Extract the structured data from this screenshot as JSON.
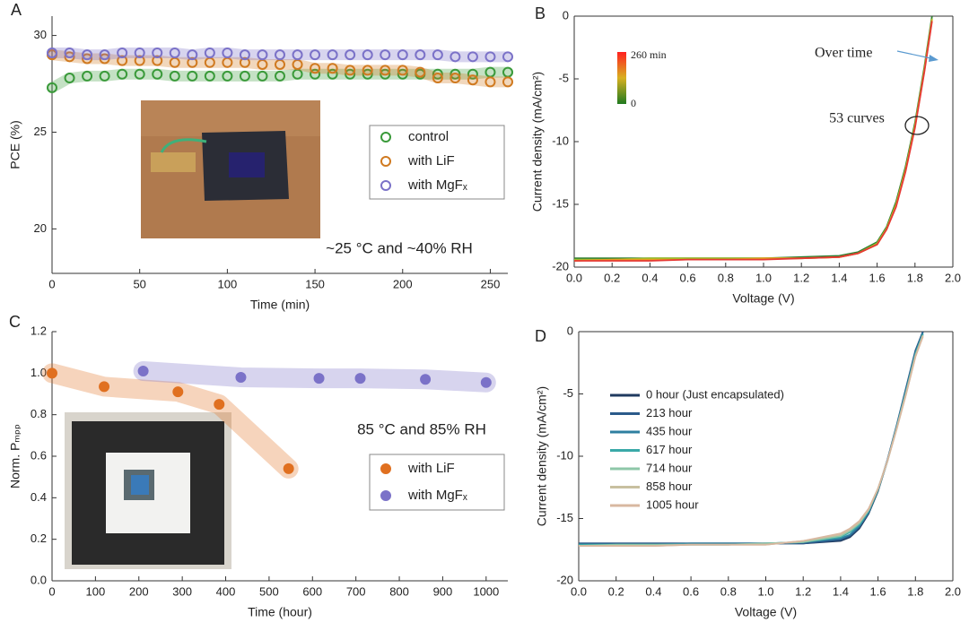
{
  "chart_data": [
    {
      "label": "A",
      "type": "scatter",
      "markers": "open",
      "xlabel": "Time (min)",
      "ylabel": "PCE (%)",
      "x": [
        0,
        10,
        20,
        30,
        40,
        50,
        60,
        70,
        80,
        90,
        100,
        110,
        120,
        130,
        140,
        150,
        160,
        170,
        180,
        190,
        200,
        210,
        220,
        230,
        240,
        250,
        260
      ],
      "xlim": [
        0,
        260
      ],
      "xticks": [
        0,
        50,
        100,
        150,
        200,
        250
      ],
      "ylim": [
        17.7,
        31
      ],
      "yticks": [
        20,
        25,
        30
      ],
      "series": [
        {
          "name": "control",
          "color": "#3a9a3a",
          "values": [
            27.3,
            27.8,
            27.9,
            27.9,
            28.0,
            28.0,
            28.0,
            27.9,
            27.9,
            27.9,
            27.9,
            27.9,
            27.9,
            27.9,
            28.0,
            28.0,
            28.0,
            28.0,
            28.0,
            28.0,
            28.0,
            28.0,
            28.0,
            28.0,
            28.0,
            28.1,
            28.1
          ]
        },
        {
          "name": "with LiF",
          "color": "#d07a20",
          "values": [
            29.0,
            28.9,
            28.8,
            28.8,
            28.7,
            28.7,
            28.7,
            28.6,
            28.6,
            28.6,
            28.6,
            28.6,
            28.5,
            28.5,
            28.5,
            28.3,
            28.3,
            28.2,
            28.2,
            28.2,
            28.2,
            28.1,
            27.8,
            27.8,
            27.7,
            27.6,
            27.6
          ]
        },
        {
          "name": "with MgFₓ",
          "color": "#7b72c8",
          "values": [
            29.1,
            29.1,
            29.0,
            29.0,
            29.1,
            29.1,
            29.1,
            29.1,
            29.0,
            29.1,
            29.1,
            29.0,
            29.0,
            29.0,
            29.0,
            29.0,
            29.0,
            29.0,
            29.0,
            29.0,
            29.0,
            29.0,
            29.0,
            28.9,
            28.9,
            28.9,
            28.9
          ]
        }
      ],
      "annotations": [
        "~25 °C and ~40% RH"
      ]
    },
    {
      "label": "B",
      "type": "line",
      "xlabel": "Voltage (V)",
      "ylabel": "Current density (mA/cm²)",
      "x": [
        0,
        0.2,
        0.4,
        0.6,
        0.8,
        1.0,
        1.2,
        1.4,
        1.5,
        1.6,
        1.65,
        1.7,
        1.75,
        1.8,
        1.85,
        1.89
      ],
      "xlim": [
        0,
        2
      ],
      "xticks": [
        {
          "value": 0,
          "label": "0.0"
        },
        0.2,
        0.4,
        0.6,
        0.8,
        {
          "value": 1,
          "label": "1.0"
        },
        1.2,
        1.4,
        1.6,
        1.8,
        {
          "value": 2,
          "label": "2.0"
        }
      ],
      "ylim": [
        -20,
        0
      ],
      "yticks": [
        0,
        -5,
        -10,
        -15,
        -20
      ],
      "series": [
        {
          "color": "#2e7d32",
          "values": [
            -19.3,
            -19.3,
            -19.3,
            -19.3,
            -19.3,
            -19.3,
            -19.2,
            -19.1,
            -18.8,
            -18.0,
            -16.8,
            -14.8,
            -12.0,
            -8.5,
            -4.0,
            0
          ]
        },
        {
          "color": "#9bbf2a",
          "values": [
            -19.4,
            -19.4,
            -19.3,
            -19.3,
            -19.3,
            -19.3,
            -19.3,
            -19.2,
            -18.9,
            -18.1,
            -16.9,
            -15.0,
            -12.2,
            -8.7,
            -4.2,
            -0.2
          ]
        },
        {
          "color": "#e6a020",
          "values": [
            -19.5,
            -19.4,
            -19.4,
            -19.4,
            -19.4,
            -19.3,
            -19.3,
            -19.2,
            -18.9,
            -18.2,
            -17.0,
            -15.1,
            -12.3,
            -8.8,
            -4.3,
            -0.3
          ]
        },
        {
          "color": "#e53935",
          "values": [
            -19.5,
            -19.5,
            -19.5,
            -19.4,
            -19.4,
            -19.4,
            -19.3,
            -19.2,
            -18.9,
            -18.2,
            -17.0,
            -15.2,
            -12.4,
            -8.9,
            -4.4,
            -0.4
          ]
        }
      ],
      "colorbar_labels": [
        "260 min",
        "0"
      ],
      "annotations": [
        "Over time",
        "53 curves"
      ]
    },
    {
      "label": "C",
      "type": "scatter",
      "markers": "filled",
      "xlabel": "Time (hour)",
      "ylabel": "Norm. Pₘₚₚ",
      "xlim": [
        0,
        1050
      ],
      "xticks": [
        0,
        100,
        200,
        300,
        400,
        500,
        600,
        700,
        800,
        900,
        1000
      ],
      "ylim": [
        0,
        1.2
      ],
      "yticks": [
        {
          "value": 0,
          "label": "0.0"
        },
        0.2,
        0.4,
        0.6,
        0.8,
        {
          "value": 1,
          "label": "1.0"
        },
        1.2
      ],
      "series": [
        {
          "name": "with LiF",
          "color": "#e07020",
          "x": [
            0,
            120,
            290,
            385,
            545
          ],
          "values": [
            1.0,
            0.935,
            0.91,
            0.85,
            0.54
          ]
        },
        {
          "name": "with MgFₓ",
          "color": "#7b72c8",
          "x": [
            210,
            435,
            615,
            710,
            860,
            1000
          ],
          "values": [
            1.01,
            0.98,
            0.975,
            0.975,
            0.97,
            0.955
          ]
        }
      ],
      "annotations": [
        "85 °C and 85% RH"
      ]
    },
    {
      "label": "D",
      "type": "line",
      "xlabel": "Voltage (V)",
      "ylabel": "Current density (mA/cm²)",
      "x": [
        0,
        0.2,
        0.4,
        0.6,
        0.8,
        1.0,
        1.2,
        1.4,
        1.45,
        1.5,
        1.55,
        1.6,
        1.65,
        1.7,
        1.75,
        1.8,
        1.84
      ],
      "xlim": [
        0,
        2
      ],
      "xticks": [
        {
          "value": 0,
          "label": "0.0"
        },
        0.2,
        0.4,
        0.6,
        0.8,
        {
          "value": 1,
          "label": "1.0"
        },
        1.2,
        1.4,
        1.6,
        1.8,
        {
          "value": 2,
          "label": "2.0"
        }
      ],
      "ylim": [
        -20,
        0
      ],
      "yticks": [
        0,
        -5,
        -10,
        -15,
        -20
      ],
      "series": [
        {
          "name": "0 hour (Just encapsulated)",
          "color": "#1f3a5f",
          "values": [
            -17.0,
            -17.0,
            -17.0,
            -17.0,
            -17.0,
            -17.0,
            -17.0,
            -16.8,
            -16.5,
            -15.8,
            -14.6,
            -12.8,
            -10.4,
            -7.6,
            -4.6,
            -1.6,
            0
          ]
        },
        {
          "name": "213 hour",
          "color": "#2b5a8a",
          "values": [
            -17.0,
            -17.0,
            -17.0,
            -17.0,
            -17.0,
            -17.0,
            -17.0,
            -16.7,
            -16.4,
            -15.7,
            -14.5,
            -12.7,
            -10.3,
            -7.5,
            -4.5,
            -1.5,
            0
          ]
        },
        {
          "name": "435 hour",
          "color": "#2e7fa0",
          "values": [
            -17.1,
            -17.1,
            -17.1,
            -17.0,
            -17.0,
            -17.0,
            -16.9,
            -16.6,
            -16.3,
            -15.6,
            -14.5,
            -12.7,
            -10.4,
            -7.6,
            -4.7,
            -1.7,
            -0.1
          ]
        },
        {
          "name": "617 hour",
          "color": "#3aa9a8",
          "values": [
            -17.1,
            -17.1,
            -17.1,
            -17.1,
            -17.1,
            -17.0,
            -16.9,
            -16.5,
            -16.1,
            -15.5,
            -14.4,
            -12.7,
            -10.4,
            -7.7,
            -4.8,
            -1.8,
            -0.2
          ]
        },
        {
          "name": "714 hour",
          "color": "#8ec7a8",
          "values": [
            -17.2,
            -17.1,
            -17.1,
            -17.1,
            -17.1,
            -17.0,
            -16.9,
            -16.4,
            -16.0,
            -15.4,
            -14.3,
            -12.6,
            -10.4,
            -7.7,
            -4.9,
            -1.9,
            -0.3
          ]
        },
        {
          "name": "858 hour",
          "color": "#c8c0a0",
          "values": [
            -17.2,
            -17.2,
            -17.2,
            -17.1,
            -17.1,
            -17.1,
            -16.8,
            -16.3,
            -15.9,
            -15.3,
            -14.3,
            -12.6,
            -10.4,
            -7.8,
            -5.0,
            -2.0,
            -0.3
          ]
        },
        {
          "name": "1005 hour",
          "color": "#d8b8a0",
          "values": [
            -17.2,
            -17.2,
            -17.2,
            -17.1,
            -17.1,
            -17.1,
            -16.8,
            -16.2,
            -15.8,
            -15.2,
            -14.2,
            -12.6,
            -10.4,
            -7.8,
            -5.0,
            -2.0,
            -0.4
          ]
        }
      ]
    }
  ]
}
